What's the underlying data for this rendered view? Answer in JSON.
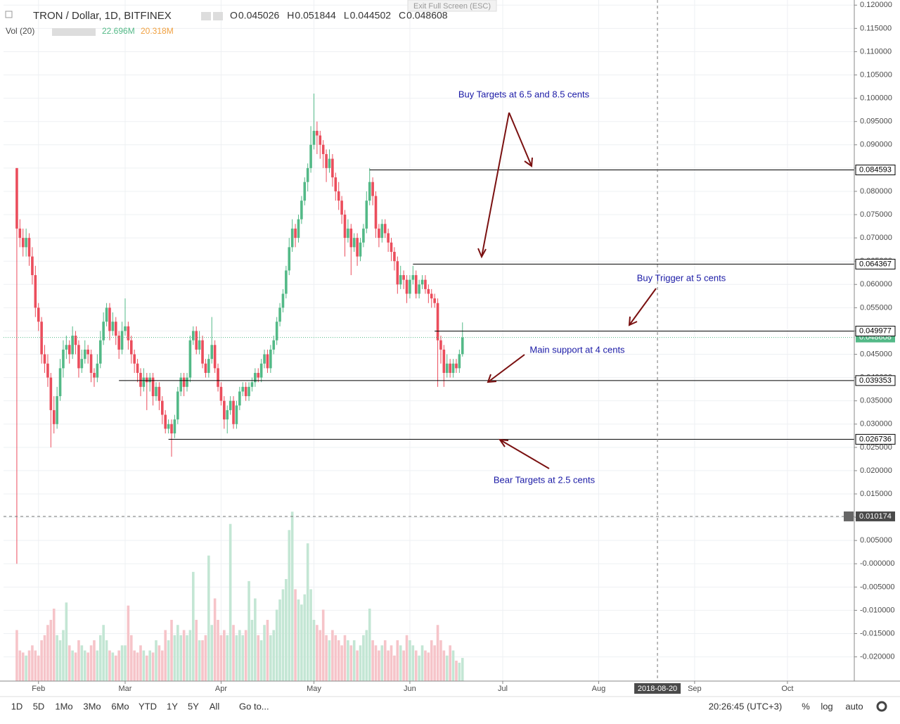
{
  "header": {
    "symbol": "TRON / Dollar, 1D, BITFINEX",
    "quote": [
      {
        "key": "O",
        "value": 0.045026
      },
      {
        "key": "H",
        "value": 0.051844
      },
      {
        "key": "L",
        "value": 0.044502
      },
      {
        "key": "C",
        "value": 0.048608
      }
    ],
    "vol": {
      "label": "Vol (20)",
      "last": "22.696M",
      "ma": "20.318M"
    },
    "exit": "Exit Full Screen (ESC)"
  },
  "toolbar": {
    "ranges": [
      "1D",
      "5D",
      "1Mo",
      "3Mo",
      "6Mo",
      "YTD",
      "1Y",
      "5Y",
      "All"
    ],
    "goto": "Go to...",
    "time": "20:26:45 (UTC+3)",
    "percent": "%",
    "log": "log",
    "auto": "auto"
  },
  "chart_data": {
    "type": "candlestick",
    "up_color": "#53b987",
    "down_color": "#eb4d5c",
    "volume_up_color": "#c3e6d4",
    "volume_down_color": "#f6c4c9",
    "level_color": "#000000",
    "xlim": [
      20.7,
      295.6
    ],
    "ylim": [
      -0.0252,
      0.1211
    ],
    "volume_lim": [
      0,
      171
    ],
    "xticks": [
      {
        "value": 32,
        "label": "Feb"
      },
      {
        "value": 60,
        "label": "Mar"
      },
      {
        "value": 91,
        "label": "Apr"
      },
      {
        "value": 121,
        "label": "May"
      },
      {
        "value": 152,
        "label": "Jun"
      },
      {
        "value": 182,
        "label": "Jul"
      },
      {
        "value": 213,
        "label": "Aug"
      },
      {
        "value": 244,
        "label": "Sep"
      },
      {
        "value": 274,
        "label": "Oct"
      }
    ],
    "yticks": [
      {
        "value": 0.12,
        "label": "0.120000"
      },
      {
        "value": 0.115,
        "label": "0.115000"
      },
      {
        "value": 0.11,
        "label": "0.110000"
      },
      {
        "value": 0.105,
        "label": "0.105000"
      },
      {
        "value": 0.1,
        "label": "0.100000"
      },
      {
        "value": 0.095,
        "label": "0.095000"
      },
      {
        "value": 0.09,
        "label": "0.090000"
      },
      {
        "value": 0.085,
        "label": "0.085000"
      },
      {
        "value": 0.08,
        "label": "0.080000"
      },
      {
        "value": 0.075,
        "label": "0.075000"
      },
      {
        "value": 0.07,
        "label": "0.070000"
      },
      {
        "value": 0.065,
        "label": "0.065000"
      },
      {
        "value": 0.06,
        "label": "0.060000"
      },
      {
        "value": 0.055,
        "label": "0.055000"
      },
      {
        "value": 0.05,
        "label": "0.050000"
      },
      {
        "value": 0.045,
        "label": "0.045000"
      },
      {
        "value": 0.04,
        "label": "0.040000"
      },
      {
        "value": 0.035,
        "label": "0.035000"
      },
      {
        "value": 0.03,
        "label": "0.030000"
      },
      {
        "value": 0.025,
        "label": "0.025000"
      },
      {
        "value": 0.02,
        "label": "0.020000"
      },
      {
        "value": 0.015,
        "label": "0.015000"
      },
      {
        "value": 0.01,
        "label": "0.010000"
      },
      {
        "value": 0.005,
        "label": "0.005000"
      },
      {
        "value": 0,
        "label": "-0.000000"
      },
      {
        "value": -0.005,
        "label": "-0.005000"
      },
      {
        "value": -0.01,
        "label": "-0.010000"
      },
      {
        "value": -0.015,
        "label": "-0.015000"
      },
      {
        "value": -0.02,
        "label": "-0.020000"
      }
    ],
    "grid": true,
    "x": [
      25,
      26,
      27,
      28,
      29,
      30,
      31,
      32,
      33,
      34,
      35,
      36,
      37,
      38,
      39,
      40,
      41,
      42,
      43,
      44,
      45,
      46,
      47,
      48,
      49,
      50,
      51,
      52,
      53,
      54,
      55,
      56,
      57,
      58,
      59,
      60,
      61,
      62,
      63,
      64,
      65,
      66,
      67,
      68,
      69,
      70,
      71,
      72,
      73,
      74,
      75,
      76,
      77,
      78,
      79,
      80,
      81,
      82,
      83,
      84,
      85,
      86,
      87,
      88,
      89,
      90,
      91,
      92,
      93,
      94,
      95,
      96,
      97,
      98,
      99,
      100,
      101,
      102,
      103,
      104,
      105,
      106,
      107,
      108,
      109,
      110,
      111,
      112,
      113,
      114,
      115,
      116,
      117,
      118,
      119,
      120,
      121,
      122,
      123,
      124,
      125,
      126,
      127,
      128,
      129,
      130,
      131,
      132,
      133,
      134,
      135,
      136,
      137,
      138,
      139,
      140,
      141,
      142,
      143,
      144,
      145,
      146,
      147,
      148,
      149,
      150,
      151,
      152,
      153,
      154,
      155,
      156,
      157,
      158,
      159,
      160,
      161,
      162,
      163,
      164,
      165,
      166,
      167,
      168,
      169
    ],
    "ohlc": [
      [
        0.085,
        0.085,
        0.0,
        0.072
      ],
      [
        0.072,
        0.074,
        0.068,
        0.07
      ],
      [
        0.07,
        0.072,
        0.066,
        0.068
      ],
      [
        0.068,
        0.072,
        0.066,
        0.07
      ],
      [
        0.07,
        0.071,
        0.064,
        0.066
      ],
      [
        0.066,
        0.068,
        0.06,
        0.062
      ],
      [
        0.062,
        0.064,
        0.053,
        0.055
      ],
      [
        0.055,
        0.056,
        0.05,
        0.052
      ],
      [
        0.052,
        0.053,
        0.043,
        0.045
      ],
      [
        0.045,
        0.047,
        0.041,
        0.043
      ],
      [
        0.043,
        0.045,
        0.038,
        0.04
      ],
      [
        0.04,
        0.041,
        0.025,
        0.033
      ],
      [
        0.033,
        0.036,
        0.028,
        0.03
      ],
      [
        0.03,
        0.038,
        0.029,
        0.036
      ],
      [
        0.036,
        0.044,
        0.035,
        0.042
      ],
      [
        0.042,
        0.048,
        0.04,
        0.046
      ],
      [
        0.046,
        0.049,
        0.044,
        0.047
      ],
      [
        0.047,
        0.048,
        0.043,
        0.045
      ],
      [
        0.045,
        0.051,
        0.044,
        0.049
      ],
      [
        0.049,
        0.05,
        0.045,
        0.047
      ],
      [
        0.047,
        0.048,
        0.04,
        0.042
      ],
      [
        0.042,
        0.046,
        0.041,
        0.044
      ],
      [
        0.044,
        0.048,
        0.043,
        0.046
      ],
      [
        0.046,
        0.047,
        0.043,
        0.045
      ],
      [
        0.045,
        0.046,
        0.039,
        0.041
      ],
      [
        0.041,
        0.042,
        0.038,
        0.04
      ],
      [
        0.04,
        0.045,
        0.039,
        0.043
      ],
      [
        0.043,
        0.05,
        0.042,
        0.048
      ],
      [
        0.048,
        0.054,
        0.047,
        0.052
      ],
      [
        0.052,
        0.056,
        0.051,
        0.055
      ],
      [
        0.055,
        0.056,
        0.048,
        0.05
      ],
      [
        0.05,
        0.054,
        0.049,
        0.052
      ],
      [
        0.052,
        0.053,
        0.047,
        0.049
      ],
      [
        0.049,
        0.05,
        0.044,
        0.046
      ],
      [
        0.046,
        0.052,
        0.045,
        0.05
      ],
      [
        0.05,
        0.057,
        0.049,
        0.051
      ],
      [
        0.051,
        0.052,
        0.046,
        0.048
      ],
      [
        0.048,
        0.049,
        0.043,
        0.045
      ],
      [
        0.045,
        0.046,
        0.041,
        0.043
      ],
      [
        0.043,
        0.044,
        0.039,
        0.041
      ],
      [
        0.041,
        0.042,
        0.036,
        0.038
      ],
      [
        0.038,
        0.042,
        0.037,
        0.04
      ],
      [
        0.04,
        0.041,
        0.033,
        0.039
      ],
      [
        0.039,
        0.041,
        0.037,
        0.04
      ],
      [
        0.04,
        0.041,
        0.034,
        0.036
      ],
      [
        0.036,
        0.039,
        0.035,
        0.038
      ],
      [
        0.038,
        0.039,
        0.033,
        0.035
      ],
      [
        0.035,
        0.036,
        0.03,
        0.032
      ],
      [
        0.032,
        0.033,
        0.028,
        0.029
      ],
      [
        0.029,
        0.031,
        0.028,
        0.03
      ],
      [
        0.03,
        0.031,
        0.023,
        0.028
      ],
      [
        0.028,
        0.032,
        0.027,
        0.031
      ],
      [
        0.031,
        0.038,
        0.03,
        0.037
      ],
      [
        0.037,
        0.041,
        0.036,
        0.04
      ],
      [
        0.04,
        0.041,
        0.036,
        0.038
      ],
      [
        0.038,
        0.041,
        0.037,
        0.04
      ],
      [
        0.04,
        0.049,
        0.039,
        0.048
      ],
      [
        0.048,
        0.051,
        0.047,
        0.05
      ],
      [
        0.05,
        0.051,
        0.045,
        0.046
      ],
      [
        0.046,
        0.05,
        0.045,
        0.048
      ],
      [
        0.048,
        0.049,
        0.042,
        0.043
      ],
      [
        0.043,
        0.044,
        0.04,
        0.041
      ],
      [
        0.041,
        0.045,
        0.04,
        0.044
      ],
      [
        0.044,
        0.053,
        0.043,
        0.047
      ],
      [
        0.047,
        0.048,
        0.041,
        0.042
      ],
      [
        0.042,
        0.043,
        0.037,
        0.038
      ],
      [
        0.038,
        0.039,
        0.034,
        0.035
      ],
      [
        0.035,
        0.036,
        0.029,
        0.031
      ],
      [
        0.031,
        0.034,
        0.028,
        0.033
      ],
      [
        0.033,
        0.036,
        0.032,
        0.035
      ],
      [
        0.035,
        0.036,
        0.029,
        0.03
      ],
      [
        0.03,
        0.035,
        0.029,
        0.034
      ],
      [
        0.034,
        0.038,
        0.033,
        0.037
      ],
      [
        0.037,
        0.039,
        0.036,
        0.038
      ],
      [
        0.038,
        0.039,
        0.035,
        0.036
      ],
      [
        0.036,
        0.039,
        0.035,
        0.038
      ],
      [
        0.038,
        0.04,
        0.037,
        0.039
      ],
      [
        0.039,
        0.042,
        0.038,
        0.041
      ],
      [
        0.041,
        0.042,
        0.039,
        0.04
      ],
      [
        0.04,
        0.044,
        0.039,
        0.043
      ],
      [
        0.043,
        0.046,
        0.042,
        0.045
      ],
      [
        0.045,
        0.046,
        0.041,
        0.042
      ],
      [
        0.042,
        0.047,
        0.041,
        0.046
      ],
      [
        0.046,
        0.049,
        0.045,
        0.048
      ],
      [
        0.048,
        0.053,
        0.047,
        0.052
      ],
      [
        0.052,
        0.056,
        0.051,
        0.055
      ],
      [
        0.055,
        0.059,
        0.054,
        0.058
      ],
      [
        0.058,
        0.064,
        0.057,
        0.063
      ],
      [
        0.063,
        0.07,
        0.062,
        0.068
      ],
      [
        0.068,
        0.074,
        0.067,
        0.072
      ],
      [
        0.072,
        0.073,
        0.068,
        0.07
      ],
      [
        0.07,
        0.075,
        0.069,
        0.074
      ],
      [
        0.074,
        0.079,
        0.073,
        0.078
      ],
      [
        0.078,
        0.083,
        0.077,
        0.082
      ],
      [
        0.082,
        0.086,
        0.08,
        0.085
      ],
      [
        0.085,
        0.094,
        0.084,
        0.09
      ],
      [
        0.09,
        0.101,
        0.089,
        0.093
      ],
      [
        0.093,
        0.095,
        0.088,
        0.092
      ],
      [
        0.092,
        0.093,
        0.087,
        0.09
      ],
      [
        0.09,
        0.091,
        0.085,
        0.088
      ],
      [
        0.088,
        0.089,
        0.082,
        0.085
      ],
      [
        0.085,
        0.089,
        0.084,
        0.087
      ],
      [
        0.087,
        0.088,
        0.081,
        0.083
      ],
      [
        0.083,
        0.084,
        0.078,
        0.08
      ],
      [
        0.08,
        0.082,
        0.076,
        0.078
      ],
      [
        0.078,
        0.079,
        0.073,
        0.075
      ],
      [
        0.075,
        0.076,
        0.066,
        0.07
      ],
      [
        0.07,
        0.074,
        0.069,
        0.072
      ],
      [
        0.072,
        0.073,
        0.062,
        0.068
      ],
      [
        0.068,
        0.071,
        0.067,
        0.07
      ],
      [
        0.07,
        0.071,
        0.064,
        0.066
      ],
      [
        0.066,
        0.07,
        0.065,
        0.069
      ],
      [
        0.069,
        0.073,
        0.068,
        0.072
      ],
      [
        0.072,
        0.08,
        0.071,
        0.078
      ],
      [
        0.078,
        0.085,
        0.077,
        0.082
      ],
      [
        0.082,
        0.083,
        0.077,
        0.079
      ],
      [
        0.079,
        0.08,
        0.07,
        0.072
      ],
      [
        0.072,
        0.073,
        0.068,
        0.07
      ],
      [
        0.07,
        0.074,
        0.069,
        0.073
      ],
      [
        0.073,
        0.074,
        0.07,
        0.071
      ],
      [
        0.071,
        0.072,
        0.067,
        0.069
      ],
      [
        0.069,
        0.07,
        0.065,
        0.067
      ],
      [
        0.067,
        0.068,
        0.063,
        0.065
      ],
      [
        0.065,
        0.066,
        0.058,
        0.06
      ],
      [
        0.06,
        0.064,
        0.059,
        0.062
      ],
      [
        0.062,
        0.063,
        0.059,
        0.061
      ],
      [
        0.061,
        0.062,
        0.056,
        0.058
      ],
      [
        0.058,
        0.062,
        0.057,
        0.061
      ],
      [
        0.061,
        0.064,
        0.06,
        0.062
      ],
      [
        0.062,
        0.063,
        0.057,
        0.058
      ],
      [
        0.058,
        0.061,
        0.057,
        0.06
      ],
      [
        0.06,
        0.062,
        0.059,
        0.061
      ],
      [
        0.061,
        0.062,
        0.058,
        0.059
      ],
      [
        0.059,
        0.06,
        0.056,
        0.058
      ],
      [
        0.058,
        0.059,
        0.055,
        0.057
      ],
      [
        0.057,
        0.058,
        0.055,
        0.056
      ],
      [
        0.056,
        0.057,
        0.038,
        0.048
      ],
      [
        0.048,
        0.049,
        0.043,
        0.046
      ],
      [
        0.046,
        0.047,
        0.038,
        0.041
      ],
      [
        0.041,
        0.045,
        0.04,
        0.043
      ],
      [
        0.043,
        0.044,
        0.04,
        0.041
      ],
      [
        0.041,
        0.044,
        0.04,
        0.043
      ],
      [
        0.043,
        0.044,
        0.041,
        0.042
      ],
      [
        0.042,
        0.046,
        0.041,
        0.045026
      ],
      [
        0.045026,
        0.051844,
        0.044502,
        0.048608
      ]
    ],
    "volume": [
      50,
      30,
      28,
      25,
      30,
      35,
      30,
      25,
      40,
      45,
      55,
      60,
      71,
      45,
      40,
      50,
      77,
      35,
      30,
      28,
      40,
      35,
      30,
      28,
      35,
      40,
      30,
      45,
      55,
      40,
      30,
      28,
      25,
      30,
      35,
      35,
      74,
      45,
      30,
      28,
      35,
      30,
      25,
      30,
      28,
      40,
      35,
      30,
      50,
      40,
      60,
      45,
      55,
      45,
      50,
      45,
      50,
      107,
      60,
      40,
      40,
      45,
      123,
      55,
      81,
      60,
      45,
      50,
      45,
      154,
      55,
      45,
      50,
      45,
      50,
      98,
      60,
      81,
      45,
      40,
      55,
      60,
      45,
      50,
      70,
      80,
      90,
      100,
      148,
      166,
      90,
      80,
      75,
      85,
      135,
      90,
      60,
      55,
      50,
      70,
      45,
      40,
      50,
      45,
      40,
      35,
      45,
      40,
      35,
      40,
      30,
      35,
      45,
      50,
      71,
      40,
      35,
      30,
      35,
      40,
      30,
      35,
      25,
      40,
      35,
      30,
      45,
      40,
      35,
      30,
      25,
      35,
      30,
      28,
      40,
      35,
      55,
      40,
      30,
      25,
      35,
      30,
      20,
      18,
      22.696
    ],
    "levels": [
      {
        "value": 0.084593,
        "from": 139
      },
      {
        "value": 0.064367,
        "from": 153
      },
      {
        "value": 0.049977,
        "from": 160
      },
      {
        "value": 0.039353,
        "from": 58
      },
      {
        "value": 0.026736,
        "from": 74
      }
    ],
    "crosshair": {
      "price": 0.010174,
      "day": 232,
      "date": "2018-08-20"
    },
    "annotations": [
      "Buy Targets at 6.5 and 8.5 cents",
      "Buy Trigger at 5 cents",
      "Main support at 4 cents",
      "Bear Targets at 2.5 cents"
    ]
  }
}
